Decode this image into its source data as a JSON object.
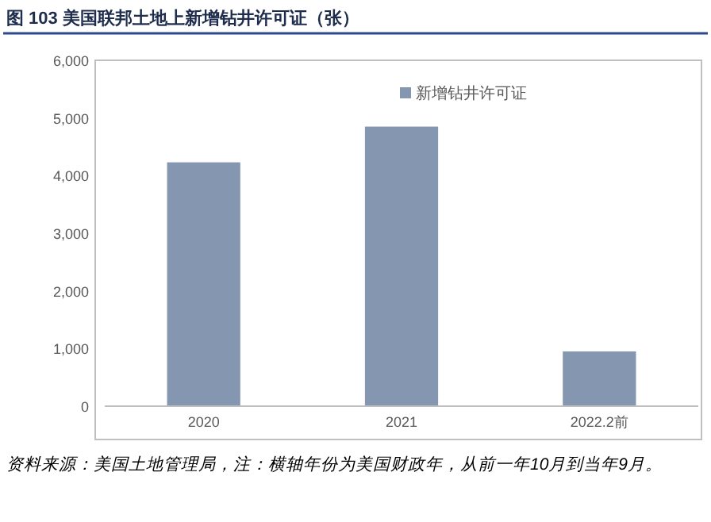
{
  "chart_data": {
    "type": "bar",
    "title": "图 103  美国联邦土地上新增钻井许可证（张）",
    "categories": [
      "2020",
      "2021",
      "2022.2前"
    ],
    "series": [
      {
        "name": "新增钻井许可证",
        "color": "#8496b0",
        "values": [
          4230,
          4850,
          950
        ]
      }
    ],
    "ylim": [
      0,
      6000
    ],
    "yticks": [
      {
        "value": 0,
        "label": "0"
      },
      {
        "value": 1000,
        "label": "1,000"
      },
      {
        "value": 2000,
        "label": "2,000"
      },
      {
        "value": 3000,
        "label": "3,000"
      },
      {
        "value": 4000,
        "label": "4,000"
      },
      {
        "value": 5000,
        "label": "5,000"
      },
      {
        "value": 6000,
        "label": "6,000"
      }
    ],
    "grid": false,
    "legend": "top right",
    "annotations": [
      "资料来源：美国土地管理局，注：横轴年份为美国财政年，从前一年10月到当年9月。"
    ]
  }
}
